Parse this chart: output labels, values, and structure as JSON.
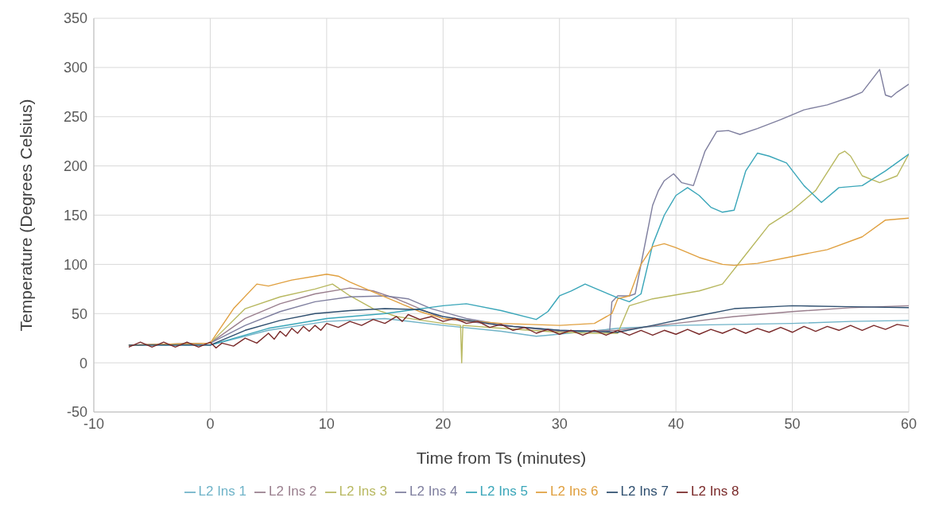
{
  "chart_data": {
    "type": "line",
    "xlabel": "Time from Ts (minutes)",
    "ylabel": "Temperature (Degrees Celsius)",
    "xlim": [
      -10,
      60
    ],
    "xticks": [
      -10,
      0,
      10,
      20,
      30,
      40,
      50,
      60
    ],
    "ylim": [
      -50,
      350
    ],
    "yticks": [
      -50,
      0,
      50,
      100,
      150,
      200,
      250,
      300,
      350
    ],
    "grid": true,
    "legend": "bottom",
    "series": [
      {
        "name": "L2 Ins 1",
        "color": "#6fb3c8",
        "x": [
          0,
          5,
          10,
          15,
          20,
          25,
          28,
          29,
          35,
          40,
          50,
          55,
          60
        ],
        "values": [
          18,
          33,
          42,
          45,
          38,
          32,
          27,
          28,
          35,
          38,
          40,
          42,
          43
        ]
      },
      {
        "name": "L2 Ins 2",
        "color": "#9a7f8e",
        "x": [
          -7,
          0,
          3,
          6,
          9,
          12,
          14,
          16,
          18,
          20,
          25,
          30,
          35,
          40,
          45,
          50,
          55,
          60
        ],
        "values": [
          18,
          20,
          45,
          60,
          70,
          76,
          73,
          65,
          55,
          45,
          38,
          32,
          33,
          40,
          47,
          52,
          56,
          58
        ]
      },
      {
        "name": "L2 Ins 3",
        "color": "#b8b860",
        "x": [
          -7,
          0,
          3,
          6,
          9,
          10.5,
          12,
          14,
          16,
          20,
          21.5,
          21.6,
          21.7,
          25,
          30,
          33,
          35,
          36,
          38,
          42,
          44,
          46,
          48,
          50,
          52,
          54,
          54.5,
          55,
          56,
          57.5,
          59,
          60
        ],
        "values": [
          18,
          20,
          55,
          67,
          75,
          80,
          68,
          55,
          47,
          40,
          38,
          0,
          38,
          35,
          31,
          30,
          30,
          58,
          65,
          73,
          80,
          110,
          140,
          155,
          175,
          212,
          215,
          210,
          190,
          183,
          190,
          212
        ]
      },
      {
        "name": "L2 Ins 4",
        "color": "#7f7f9f",
        "x": [
          -7,
          0,
          3,
          6,
          9,
          12,
          15,
          17,
          19,
          22,
          26,
          30,
          33,
          34.3,
          34.5,
          35,
          36,
          36.5,
          37.5,
          38,
          38.5,
          39,
          39.8,
          40.5,
          41.5,
          42.5,
          43.5,
          44.5,
          45.5,
          47,
          49,
          51,
          53,
          55,
          56,
          57.5,
          58,
          58.5,
          59,
          60
        ],
        "values": [
          18,
          20,
          38,
          52,
          62,
          67,
          68,
          65,
          55,
          45,
          37,
          33,
          32,
          32,
          62,
          68,
          68,
          70,
          130,
          160,
          175,
          185,
          192,
          183,
          180,
          215,
          235,
          236,
          232,
          238,
          247,
          257,
          262,
          270,
          275,
          298,
          272,
          270,
          275,
          283
        ]
      },
      {
        "name": "L2 Ins 5",
        "color": "#3aa6b9",
        "x": [
          -7,
          0,
          5,
          10,
          15,
          20,
          22,
          25,
          28,
          29,
          30,
          31,
          32.2,
          33,
          35,
          36,
          37,
          38,
          39,
          40,
          41,
          42,
          43,
          44,
          45,
          46,
          47,
          48,
          49.5,
          51,
          52.5,
          54,
          56,
          58,
          60
        ],
        "values": [
          18,
          18,
          35,
          45,
          50,
          58,
          60,
          53,
          44,
          52,
          68,
          73,
          80,
          76,
          66,
          62,
          70,
          120,
          150,
          170,
          178,
          170,
          158,
          153,
          155,
          195,
          213,
          210,
          203,
          180,
          163,
          178,
          180,
          195,
          212
        ]
      },
      {
        "name": "L2 Ins 6",
        "color": "#e0a040",
        "x": [
          -7,
          0,
          2,
          4,
          5,
          7,
          9,
          10,
          11,
          12,
          14,
          16,
          18,
          20,
          25,
          30,
          33,
          34.5,
          35,
          36,
          37,
          38,
          39,
          40,
          42,
          44,
          45,
          47,
          50,
          53,
          56,
          58,
          60
        ],
        "values": [
          18,
          20,
          55,
          80,
          78,
          84,
          88,
          90,
          88,
          82,
          72,
          62,
          52,
          45,
          40,
          38,
          40,
          50,
          65,
          68,
          100,
          118,
          121,
          117,
          107,
          100,
          99,
          101,
          108,
          115,
          128,
          145,
          147
        ]
      },
      {
        "name": "L2 Ins 7",
        "color": "#2f4f6f",
        "x": [
          -7,
          0,
          3,
          6,
          9,
          12,
          15,
          18,
          20,
          25,
          30,
          35,
          38,
          42,
          45,
          50,
          55,
          60
        ],
        "values": [
          18,
          18,
          33,
          43,
          50,
          53,
          55,
          54,
          47,
          38,
          33,
          31,
          38,
          48,
          55,
          58,
          57,
          56
        ]
      },
      {
        "name": "L2 Ins 8",
        "color": "#7a2a2a",
        "x": [
          -7,
          -6,
          -5,
          -4,
          -3,
          -2,
          -1,
          0,
          0.5,
          1,
          2,
          3,
          4,
          5,
          5.5,
          6,
          6.5,
          7,
          7.5,
          8,
          8.5,
          9,
          9.5,
          10,
          11,
          12,
          13,
          14,
          15,
          16,
          16.5,
          17,
          18,
          19,
          20,
          21,
          22,
          23,
          24,
          25,
          26,
          27,
          28,
          29,
          30,
          31,
          32,
          33,
          34,
          35,
          36,
          37,
          38,
          39,
          40,
          41,
          42,
          43,
          44,
          45,
          46,
          47,
          48,
          49,
          50,
          51,
          52,
          53,
          54,
          55,
          56,
          57,
          58,
          59,
          60
        ],
        "values": [
          16,
          21,
          16,
          21,
          16,
          21,
          16,
          21,
          15,
          20,
          17,
          25,
          20,
          30,
          24,
          32,
          27,
          35,
          30,
          37,
          32,
          38,
          33,
          40,
          36,
          42,
          38,
          44,
          40,
          47,
          42,
          49,
          44,
          47,
          42,
          45,
          40,
          42,
          36,
          39,
          33,
          36,
          30,
          34,
          29,
          33,
          28,
          33,
          28,
          33,
          28,
          33,
          28,
          33,
          29,
          34,
          29,
          34,
          30,
          35,
          30,
          35,
          31,
          36,
          31,
          37,
          32,
          37,
          33,
          38,
          33,
          38,
          34,
          39,
          37
        ]
      }
    ]
  }
}
